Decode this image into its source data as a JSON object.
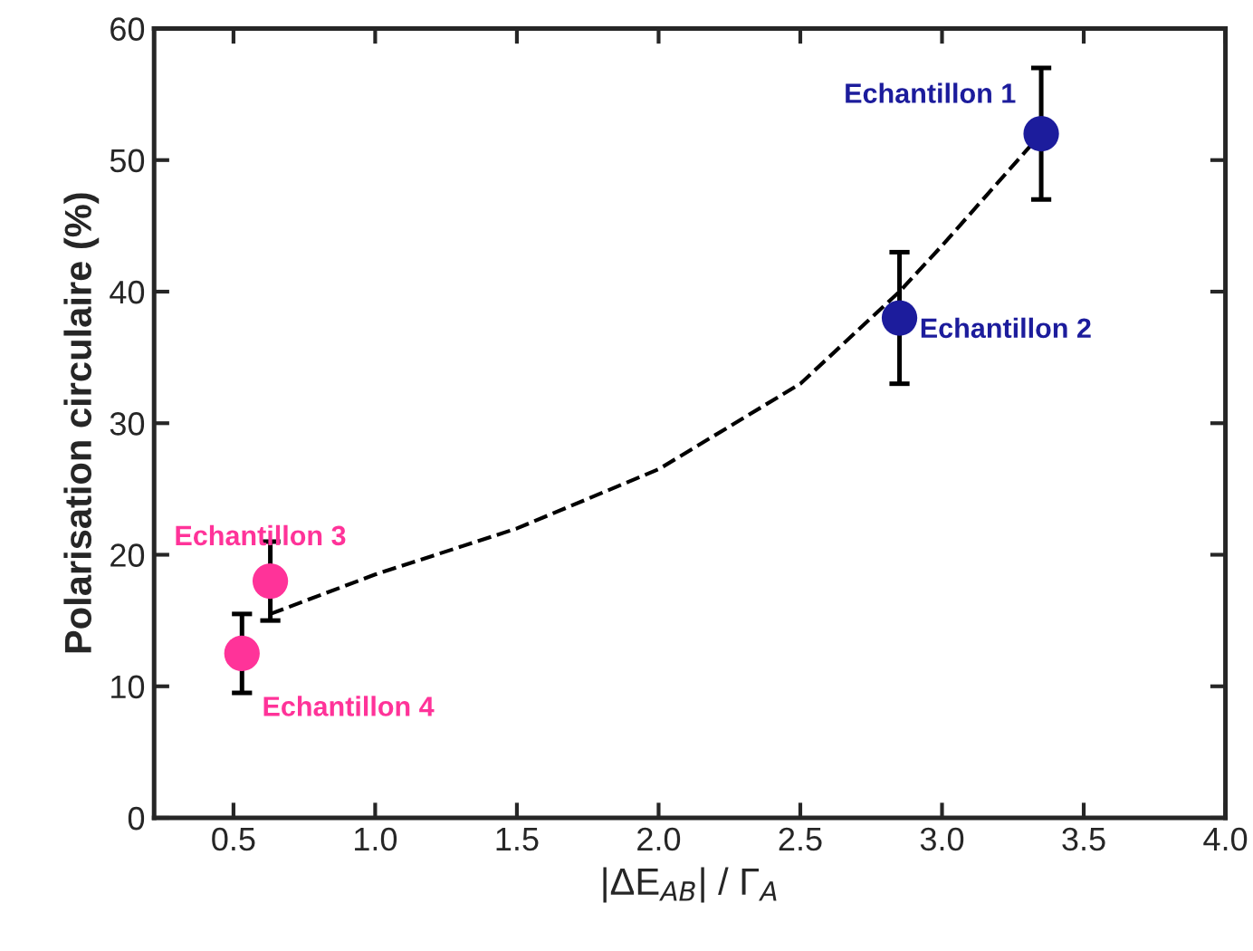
{
  "chart_data": {
    "type": "scatter",
    "xlabel": "|ΔE$_{AB}$| / Γ$_{A}$",
    "ylabel": "Polarisation circulaire (%)",
    "xlim": [
      0.22,
      4.0
    ],
    "ylim": [
      0,
      60
    ],
    "xticks": [
      0.5,
      {
        "value": 1.0,
        "label": "1.0"
      },
      1.5,
      {
        "value": 2.0,
        "label": "2.0"
      },
      2.5,
      {
        "value": 3.0,
        "label": "3.0"
      },
      3.5,
      {
        "value": 4.0,
        "label": "4.0"
      }
    ],
    "yticks": [
      0,
      10,
      20,
      30,
      40,
      50,
      60
    ],
    "grid": false,
    "marker": "circle",
    "series": [
      {
        "type": "line",
        "color": "#000000",
        "line_style": "dashed",
        "marker": "none",
        "x": [
          0.63,
          1.0,
          1.5,
          2.0,
          2.5,
          2.85,
          3.0,
          3.35
        ],
        "values": [
          15.5,
          18.5,
          22,
          26.5,
          33,
          40,
          43.5,
          52
        ]
      },
      {
        "x": [
          3.35,
          2.85,
          0.63,
          0.53
        ],
        "values": [
          52,
          38,
          18,
          12.5
        ],
        "errors": [
          5,
          5,
          3,
          3
        ],
        "colors": [
          "#1c1c9c",
          "#1c1c9c",
          "#ff3399",
          "#ff3399"
        ]
      }
    ],
    "annotations": [
      {
        "text": "Echantillon 1",
        "x": 3.35,
        "y": 52
      },
      {
        "text": "Echantillon 2",
        "x": 2.85,
        "y": 38
      },
      {
        "text": "Echantillon 3",
        "x": 0.63,
        "y": 18
      },
      {
        "text": "Echantillon 4",
        "x": 0.53,
        "y": 12.5
      }
    ]
  }
}
